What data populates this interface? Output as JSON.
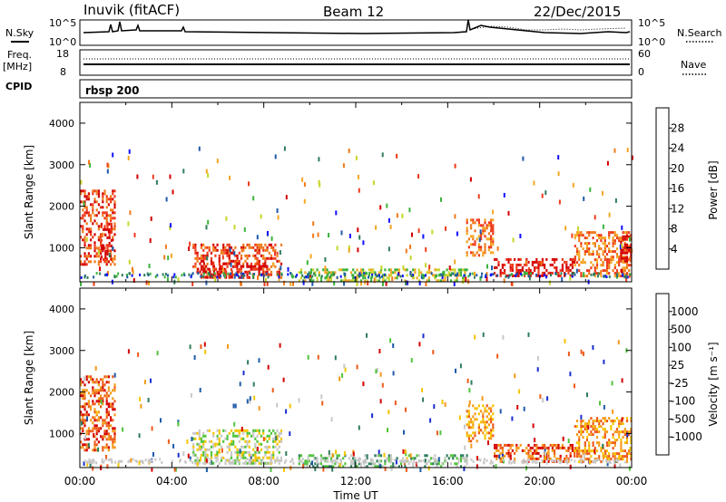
{
  "header": {
    "station": "Inuvik (fitACF)",
    "beam": "Beam 12",
    "date": "22/Dec/2015"
  },
  "strip_panels": {
    "nsky": {
      "left_label": "N.Sky",
      "ticks": [
        "10^5",
        "10^0"
      ],
      "right_ticks": [
        "10^5",
        "10^0"
      ],
      "right_label": "N.Search"
    },
    "freq": {
      "left_label_1": "Freq.",
      "left_label_2": "[MHz]",
      "ticks": [
        "18",
        "8"
      ],
      "right_ticks": [
        "60",
        "0"
      ],
      "right_label": "Nave"
    },
    "cpid": {
      "left_label": "CPID",
      "value": "rbsp 200"
    }
  },
  "colors": {
    "power_scale": [
      "#1010ff",
      "#1d5aa8",
      "#2e7d5a",
      "#3bb33b",
      "#c7d62a",
      "#f5a623",
      "#f07a1a",
      "#ee3a1a",
      "#d40000"
    ],
    "velocity_scale": [
      "#1a2fd0",
      "#1d5aa8",
      "#2e7d5a",
      "#4fc43a",
      "#c8c8c8",
      "#f5c400",
      "#f59a1a",
      "#ee5a1a",
      "#d40000"
    ],
    "scatter_gray": "#c8c8c8"
  },
  "chart_data": [
    {
      "type": "heatmap",
      "panel": "power",
      "ylabel": "Slant Range [km]",
      "yticks": [
        "4000",
        "3000",
        "2000",
        "1000"
      ],
      "ylim": [
        180,
        4500
      ],
      "xlim": [
        0,
        24
      ],
      "colorbar_label": "Power [dB]",
      "colorbar_ticks": [
        "28",
        "24",
        "20",
        "16",
        "12",
        "8",
        "4"
      ],
      "regions": [
        {
          "x": [
            0.0,
            1.5
          ],
          "y": [
            600,
            2400
          ],
          "level": 7
        },
        {
          "x": [
            0.9,
            1.4
          ],
          "y": [
            700,
            1600
          ],
          "level": 8
        },
        {
          "x": [
            4.9,
            8.8
          ],
          "y": [
            300,
            1100
          ],
          "level": 7
        },
        {
          "x": [
            5.1,
            6.6
          ],
          "y": [
            300,
            650
          ],
          "level": 8
        },
        {
          "x": [
            6.8,
            8.2
          ],
          "y": [
            350,
            650
          ],
          "level": 8
        },
        {
          "x": [
            9.5,
            16.8
          ],
          "y": [
            200,
            500
          ],
          "level": 4
        },
        {
          "x": [
            16.8,
            18.0
          ],
          "y": [
            800,
            1700
          ],
          "level": 6
        },
        {
          "x": [
            18.0,
            21.5
          ],
          "y": [
            350,
            750
          ],
          "level": 8
        },
        {
          "x": [
            21.5,
            24.0
          ],
          "y": [
            300,
            1400
          ],
          "level": 6
        },
        {
          "x": [
            23.5,
            24.0
          ],
          "y": [
            700,
            1300
          ],
          "level": 8
        }
      ]
    },
    {
      "type": "heatmap",
      "panel": "velocity",
      "ylabel": "Slant Range [km]",
      "xlabel": "Time UT",
      "yticks": [
        "4000",
        "3000",
        "2000",
        "1000"
      ],
      "ylim": [
        180,
        4500
      ],
      "xlim": [
        0,
        24
      ],
      "xticks": [
        "00:00",
        "04:00",
        "08:00",
        "12:00",
        "16:00",
        "20:00",
        "00:00"
      ],
      "colorbar_label": "Velocity [m s⁻¹]",
      "colorbar_ticks": [
        "1000",
        "500",
        "100",
        "25",
        "-25",
        "-100",
        "-500",
        "-1000"
      ],
      "regions": [
        {
          "x": [
            0.0,
            1.5
          ],
          "y": [
            600,
            2400
          ],
          "level": 7
        },
        {
          "x": [
            4.9,
            8.8
          ],
          "y": [
            300,
            1100
          ],
          "level": 4
        },
        {
          "x": [
            9.5,
            16.8
          ],
          "y": [
            200,
            500
          ],
          "level": 3
        },
        {
          "x": [
            16.8,
            18.0
          ],
          "y": [
            800,
            1700
          ],
          "level": 6
        },
        {
          "x": [
            18.0,
            21.5
          ],
          "y": [
            350,
            750
          ],
          "level": 7
        },
        {
          "x": [
            21.5,
            24.0
          ],
          "y": [
            300,
            1400
          ],
          "level": 6
        }
      ]
    }
  ]
}
